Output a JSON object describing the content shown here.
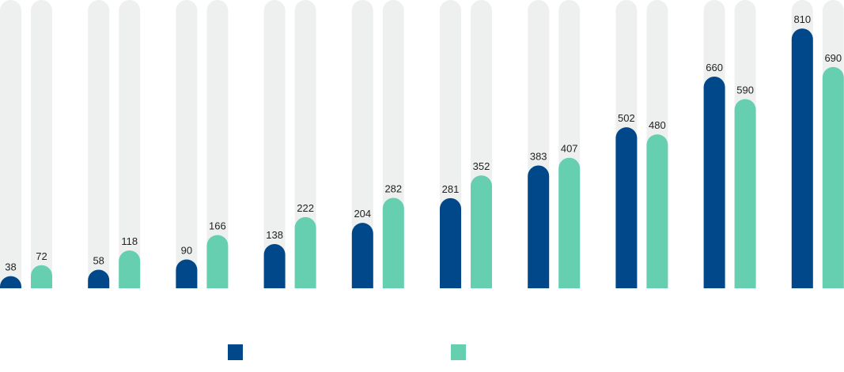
{
  "colors": {
    "series_a": "#004889",
    "series_b": "#66cfb0",
    "track": "#eef0ef",
    "label": "#222222"
  },
  "chart_data": {
    "type": "bar",
    "categories": [
      "",
      "",
      "",
      "",
      "",
      "",
      "",
      "",
      "",
      ""
    ],
    "series": [
      {
        "name": "",
        "values": [
          38,
          58,
          90,
          138,
          204,
          281,
          383,
          502,
          660,
          810
        ]
      },
      {
        "name": "",
        "values": [
          72,
          118,
          166,
          222,
          282,
          352,
          407,
          480,
          590,
          690
        ]
      }
    ],
    "ylim": [
      0,
      830
    ],
    "grid": false,
    "legend": "bottom",
    "data_labels": true
  }
}
